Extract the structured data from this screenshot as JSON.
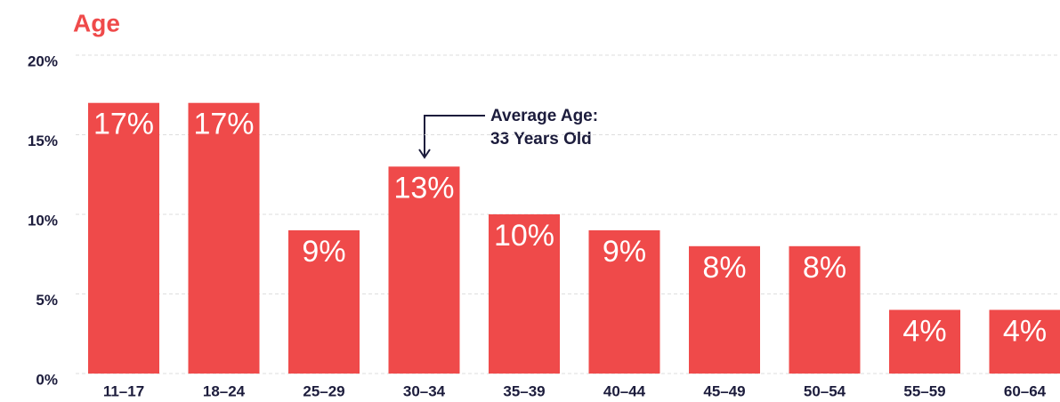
{
  "chart_data": {
    "type": "bar",
    "title": "Age",
    "categories": [
      "11–17",
      "18–24",
      "25–29",
      "30–34",
      "35–39",
      "40–44",
      "45–49",
      "50–54",
      "55–59",
      "60–64"
    ],
    "values": [
      17,
      17,
      9,
      13,
      10,
      9,
      8,
      8,
      4,
      4
    ],
    "value_labels": [
      "17%",
      "17%",
      "9%",
      "13%",
      "10%",
      "9%",
      "8%",
      "8%",
      "4%",
      "4%"
    ],
    "color": "#ef4a4a",
    "ylim": [
      0,
      20
    ],
    "yticks": [
      {
        "value": 0,
        "label": "0%"
      },
      {
        "value": 5,
        "label": "5%"
      },
      {
        "value": 10,
        "label": "10%"
      },
      {
        "value": 15,
        "label": "15%"
      },
      {
        "value": 20,
        "label": "20%"
      }
    ],
    "grid": true,
    "annotations": [
      "Average Age:",
      "33 Years Old"
    ]
  }
}
